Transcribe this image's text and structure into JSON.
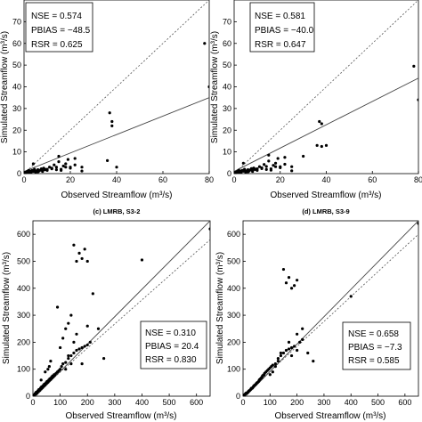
{
  "figure": {
    "captions": [
      "(c) LMRB, S3-2",
      "(d) LMRB, S3-9"
    ]
  },
  "chart_data": [
    {
      "type": "scatter",
      "panel": "top-left",
      "xlabel": "Observed Streamflow (m³/s)",
      "ylabel": "Simulated Streamflow (m³/s)",
      "xlim": [
        0,
        80
      ],
      "ylim": [
        0,
        80
      ],
      "xticks": [
        0,
        20,
        40,
        60,
        80
      ],
      "yticks": [
        0,
        10,
        20,
        30,
        40,
        50,
        60,
        70
      ],
      "stats_lines": [
        "NSE = 0.574",
        "PBIAS = −48.5",
        "RSR = 0.625"
      ],
      "regression_line": {
        "x": [
          0,
          80
        ],
        "y": [
          1,
          35
        ]
      },
      "one_to_one_line": {
        "x": [
          0,
          80
        ],
        "y": [
          0,
          80
        ]
      },
      "points": {
        "x": [
          0.5,
          1,
          1.5,
          2,
          2.5,
          3,
          3.5,
          4,
          4.5,
          5,
          5.5,
          6,
          6.5,
          7,
          7.5,
          8,
          8.5,
          9,
          10,
          11,
          12,
          13,
          14,
          15,
          16,
          17,
          18,
          19,
          20,
          1,
          2,
          3,
          5,
          6,
          8,
          10,
          12,
          14,
          15,
          16,
          18,
          20,
          22,
          22,
          25,
          25,
          36,
          37,
          38,
          38,
          40,
          78,
          80,
          2,
          4,
          9
        ],
        "y": [
          0.5,
          0.8,
          1,
          0.5,
          1.2,
          0.8,
          1.5,
          1,
          2,
          1.3,
          0.9,
          1.8,
          1.2,
          1.6,
          2.2,
          1.4,
          2.5,
          1.8,
          2,
          3,
          2.5,
          4,
          3,
          5.5,
          2,
          3.5,
          4.5,
          6.5,
          3,
          0.2,
          0.3,
          0.4,
          0.6,
          0.8,
          1,
          1.5,
          2.2,
          1.8,
          8,
          1.5,
          3,
          2.5,
          4,
          7,
          1.2,
          3,
          6,
          28,
          24,
          22,
          3,
          60,
          40,
          1.5,
          4.5,
          2
        ]
      }
    },
    {
      "type": "scatter",
      "panel": "top-right",
      "xlabel": "Observed Streamflow (m³/s)",
      "ylabel": "Simulated Streamflow (m³/s)",
      "xlim": [
        0,
        80
      ],
      "ylim": [
        0,
        80
      ],
      "xticks": [
        0,
        20,
        40,
        60,
        80
      ],
      "yticks": [
        0,
        10,
        20,
        30,
        40,
        50,
        60,
        70
      ],
      "stats_lines": [
        "NSE = 0.581",
        "PBIAS = −40.0",
        "RSR = 0.647"
      ],
      "regression_line": {
        "x": [
          0,
          80
        ],
        "y": [
          1,
          44
        ]
      },
      "one_to_one_line": {
        "x": [
          0,
          80
        ],
        "y": [
          0,
          80
        ]
      },
      "points": {
        "x": [
          0.5,
          1,
          1.5,
          2,
          2.5,
          3,
          3.5,
          4,
          4.5,
          5,
          5.5,
          6,
          6.5,
          7,
          7.5,
          8,
          8.5,
          9,
          10,
          11,
          12,
          13,
          14,
          15,
          16,
          17,
          18,
          19,
          20,
          1,
          2,
          3,
          5,
          6,
          8,
          10,
          12,
          14,
          15,
          16,
          18,
          20,
          22,
          22,
          25,
          25,
          36,
          37,
          38,
          38,
          40,
          78,
          80,
          2,
          4,
          9,
          30
        ],
        "y": [
          0.5,
          0.8,
          1,
          0.6,
          1.2,
          0.9,
          1.5,
          1.1,
          2,
          1.3,
          1,
          1.8,
          1.2,
          1.7,
          2.3,
          1.5,
          2.6,
          1.9,
          2.2,
          3.2,
          2.7,
          4.2,
          3.3,
          5.8,
          2.2,
          3.8,
          4.8,
          7,
          3.2,
          0.2,
          0.3,
          0.4,
          0.6,
          0.8,
          1,
          1.5,
          2.3,
          1.9,
          8.5,
          1.6,
          3.2,
          2.7,
          4.3,
          7.5,
          1.3,
          3.2,
          13,
          24,
          23,
          12.5,
          13,
          49.5,
          34,
          1.6,
          4.8,
          2.1,
          8
        ]
      }
    },
    {
      "type": "scatter",
      "panel": "bottom-left",
      "xlabel": "Observed Streamflow (m³/s)",
      "ylabel": "Simulated Streamflow (m³/s)",
      "xlim": [
        0,
        650
      ],
      "ylim": [
        0,
        650
      ],
      "xticks": [
        0,
        100,
        200,
        300,
        400,
        500,
        600
      ],
      "yticks": [
        0,
        100,
        200,
        300,
        400,
        500,
        600
      ],
      "stats_lines": [
        "NSE = 0.310",
        "PBIAS = 20.4",
        "RSR = 0.830"
      ],
      "regression_line": {
        "x": [
          0,
          650
        ],
        "y": [
          -10,
          650
        ]
      },
      "one_to_one_line": {
        "x": [
          0,
          650
        ],
        "y": [
          0,
          580
        ]
      },
      "points": {
        "x": [
          5,
          8,
          10,
          12,
          15,
          18,
          20,
          22,
          25,
          28,
          30,
          32,
          35,
          38,
          40,
          42,
          45,
          48,
          50,
          52,
          55,
          58,
          60,
          62,
          65,
          68,
          70,
          72,
          75,
          78,
          80,
          85,
          90,
          95,
          100,
          105,
          110,
          120,
          130,
          140,
          150,
          160,
          170,
          180,
          190,
          200,
          210,
          150,
          160,
          170,
          180,
          190,
          200,
          220,
          240,
          260,
          180,
          400,
          650,
          90,
          110,
          120,
          130,
          140,
          100,
          130,
          150,
          160,
          200,
          120,
          140,
          60,
          30,
          45,
          55,
          65
        ],
        "y": [
          5,
          10,
          8,
          15,
          12,
          20,
          18,
          25,
          22,
          30,
          28,
          35,
          32,
          40,
          38,
          45,
          42,
          50,
          48,
          55,
          52,
          60,
          58,
          65,
          62,
          70,
          68,
          75,
          72,
          80,
          78,
          85,
          90,
          95,
          100,
          110,
          120,
          125,
          140,
          150,
          160,
          170,
          175,
          180,
          185,
          190,
          200,
          560,
          500,
          530,
          510,
          545,
          500,
          380,
          250,
          140,
          120,
          505,
          620,
          330,
          215,
          250,
          270,
          300,
          180,
          150,
          200,
          230,
          260,
          100,
          120,
          110,
          60,
          90,
          100,
          130
        ]
      }
    },
    {
      "type": "scatter",
      "panel": "bottom-right",
      "xlabel": "Observed Streamflow (m³/s)",
      "ylabel": "Simulated Streamflow (m³/s)",
      "xlim": [
        0,
        650
      ],
      "ylim": [
        0,
        650
      ],
      "xticks": [
        0,
        100,
        200,
        300,
        400,
        500,
        600
      ],
      "yticks": [
        0,
        100,
        200,
        300,
        400,
        500,
        600
      ],
      "stats_lines": [
        "NSE = 0.658",
        "PBIAS = −7.3",
        "RSR = 0.585"
      ],
      "regression_line": {
        "x": [
          0,
          650
        ],
        "y": [
          -10,
          650
        ]
      },
      "one_to_one_line": {
        "x": [
          0,
          650
        ],
        "y": [
          0,
          600
        ]
      },
      "points": {
        "x": [
          5,
          8,
          10,
          12,
          15,
          18,
          20,
          22,
          25,
          28,
          30,
          32,
          35,
          38,
          40,
          42,
          45,
          48,
          50,
          52,
          55,
          58,
          60,
          62,
          65,
          68,
          70,
          72,
          75,
          78,
          80,
          85,
          90,
          95,
          100,
          105,
          110,
          120,
          130,
          140,
          150,
          160,
          170,
          180,
          190,
          200,
          210,
          150,
          160,
          170,
          180,
          190,
          200,
          220,
          240,
          260,
          180,
          400,
          650,
          100,
          110,
          120,
          130,
          140,
          170,
          200,
          220
        ],
        "y": [
          5,
          8,
          10,
          12,
          12,
          15,
          18,
          20,
          22,
          25,
          28,
          30,
          30,
          35,
          38,
          40,
          42,
          45,
          48,
          50,
          52,
          55,
          60,
          62,
          65,
          68,
          70,
          75,
          78,
          80,
          85,
          90,
          95,
          100,
          105,
          110,
          115,
          120,
          140,
          150,
          160,
          170,
          175,
          180,
          185,
          170,
          200,
          470,
          420,
          440,
          400,
          410,
          430,
          210,
          160,
          130,
          150,
          370,
          640,
          80,
          90,
          110,
          130,
          160,
          200,
          230,
          250
        ]
      }
    }
  ]
}
